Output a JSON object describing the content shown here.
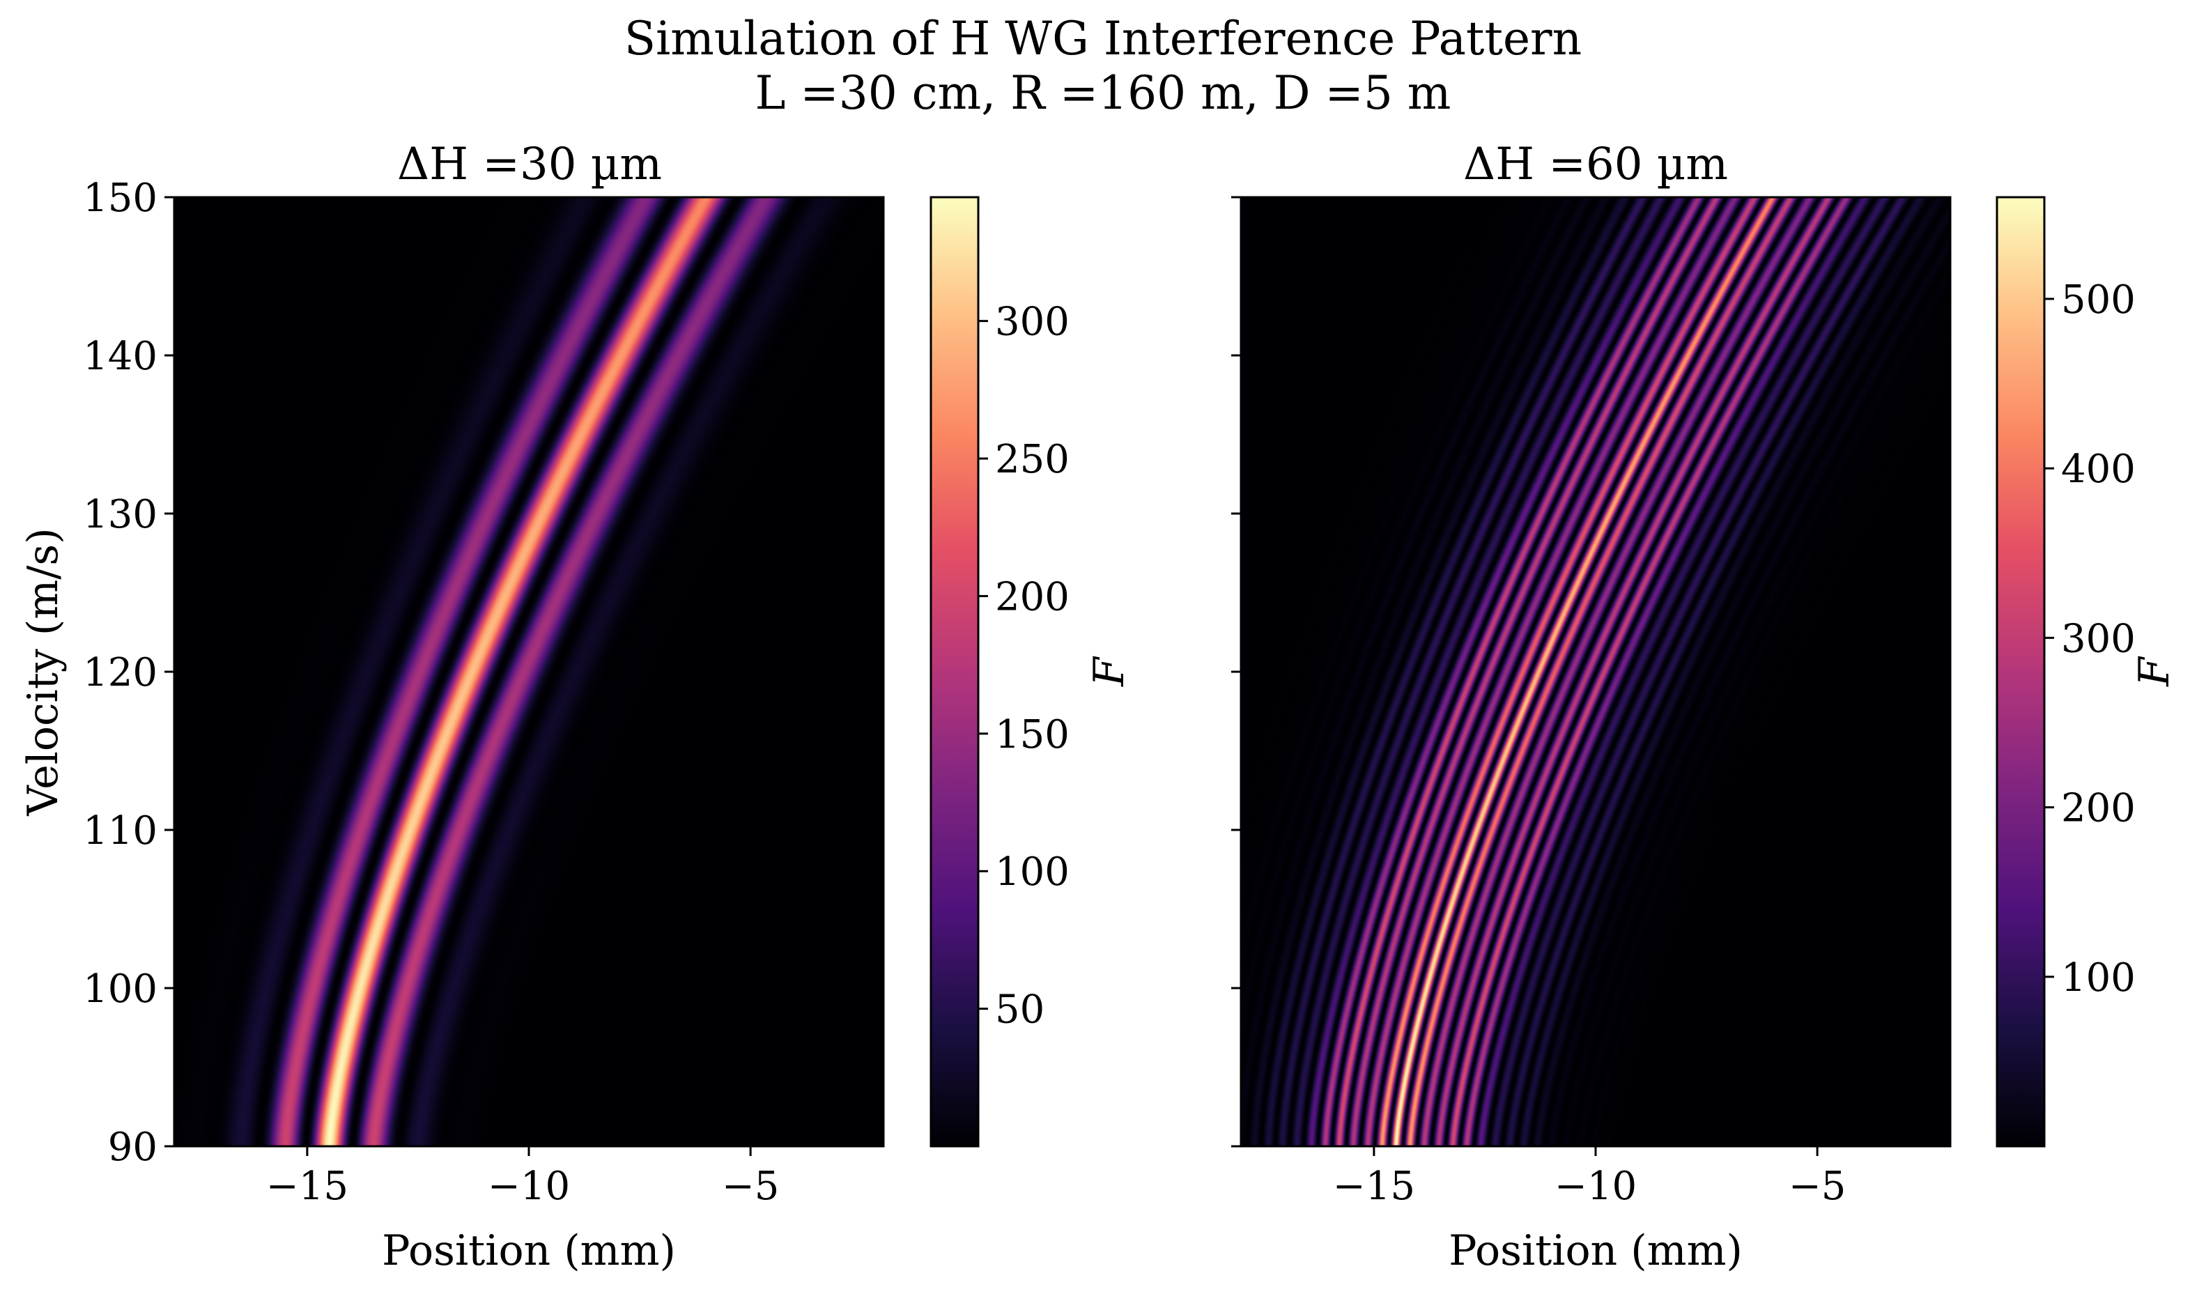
{
  "figure": {
    "title_line1": "Simulation of H WG Interference Pattern",
    "title_line2": "L =30 cm, R =160 m, D =5 m"
  },
  "chart_data": [
    {
      "type": "heatmap",
      "title": "ΔH =30 µm",
      "xlabel": "Position (mm)",
      "ylabel": "Velocity (m/s)",
      "xlim": [
        -18,
        -2
      ],
      "ylim": [
        90,
        150
      ],
      "xticks": [
        -15,
        -10,
        -5
      ],
      "yticks": [
        90,
        100,
        110,
        120,
        130,
        140,
        150
      ],
      "colormap": "magma",
      "colorbar": {
        "label": "F",
        "min": 0,
        "max": 345,
        "ticks": [
          50,
          100,
          150,
          200,
          250,
          300
        ]
      },
      "pattern": {
        "description_values": "fringe center x(v) = -14.5 + 8.5*((v-90)/60)^1.4 mm",
        "fringe_spacing_mm": [
          1.05,
          1.45
        ],
        "envelope_width_mm": [
          2.2,
          2.8
        ],
        "peak_F": 345
      }
    },
    {
      "type": "heatmap",
      "title": "ΔH =60 µm",
      "xlabel": "Position (mm)",
      "ylabel": "",
      "xlim": [
        -18,
        -2
      ],
      "ylim": [
        90,
        150
      ],
      "xticks": [
        -15,
        -10,
        -5
      ],
      "yticks": [
        90,
        100,
        110,
        120,
        130,
        140,
        150
      ],
      "colormap": "magma",
      "colorbar": {
        "label": "F",
        "min": 0,
        "max": 560,
        "ticks": [
          100,
          200,
          300,
          400,
          500
        ]
      },
      "pattern": {
        "description_values": "fringe center x(v) = -14.5 + 8.5*((v-90)/60)^1.4 mm",
        "fringe_spacing_mm": [
          0.32,
          0.42
        ],
        "envelope_width_mm": [
          3.2,
          4.0
        ],
        "peak_F": 560
      }
    }
  ]
}
